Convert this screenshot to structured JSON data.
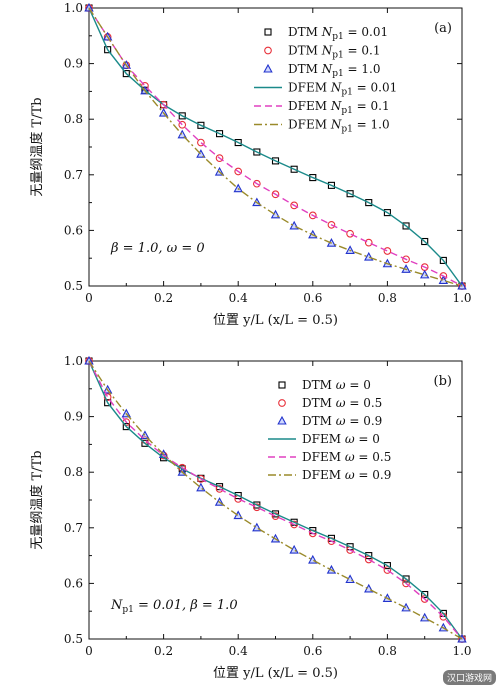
{
  "chart_data": [
    {
      "type": "line",
      "panel_label": "(a)",
      "xlabel": "位置 y/L (x/L = 0.5)",
      "ylabel": "无量纲温度 T/Tb",
      "xlim": [
        0,
        1.0
      ],
      "ylim": [
        0.5,
        1.0
      ],
      "xticks": [
        "0",
        "0.2",
        "0.4",
        "0.6",
        "0.8",
        "1.0"
      ],
      "yticks": [
        "0.5",
        "0.6",
        "0.7",
        "0.8",
        "0.9",
        "1.0"
      ],
      "annotation": "β = 1.0, ω = 0",
      "legend_position": "top-right",
      "series": [
        {
          "name": "DTM Np1 = 0.01",
          "kind": "marker",
          "marker": "square",
          "color": "#000000",
          "x": [
            0,
            0.05,
            0.1,
            0.15,
            0.2,
            0.25,
            0.3,
            0.35,
            0.4,
            0.45,
            0.5,
            0.55,
            0.6,
            0.65,
            0.7,
            0.75,
            0.8,
            0.85,
            0.9,
            0.95,
            1.0
          ],
          "y": [
            1.0,
            0.925,
            0.882,
            0.852,
            0.826,
            0.806,
            0.789,
            0.774,
            0.758,
            0.741,
            0.725,
            0.71,
            0.695,
            0.681,
            0.666,
            0.65,
            0.632,
            0.608,
            0.58,
            0.546,
            0.5
          ]
        },
        {
          "name": "DTM Np1 = 0.1",
          "kind": "marker",
          "marker": "circle",
          "color": "#e8303a",
          "x": [
            0,
            0.05,
            0.1,
            0.15,
            0.2,
            0.25,
            0.3,
            0.35,
            0.4,
            0.45,
            0.5,
            0.55,
            0.6,
            0.65,
            0.7,
            0.75,
            0.8,
            0.85,
            0.9,
            0.95,
            1.0
          ],
          "y": [
            1.0,
            0.948,
            0.897,
            0.86,
            0.826,
            0.79,
            0.758,
            0.73,
            0.706,
            0.684,
            0.665,
            0.645,
            0.627,
            0.61,
            0.594,
            0.578,
            0.563,
            0.548,
            0.534,
            0.518,
            0.5
          ]
        },
        {
          "name": "DTM Np1 = 1.0",
          "kind": "marker",
          "marker": "triangle",
          "color": "#2233cc",
          "x": [
            0,
            0.05,
            0.1,
            0.15,
            0.2,
            0.25,
            0.3,
            0.35,
            0.4,
            0.45,
            0.5,
            0.55,
            0.6,
            0.65,
            0.7,
            0.75,
            0.8,
            0.85,
            0.9,
            0.95,
            1.0
          ],
          "y": [
            1.0,
            0.948,
            0.897,
            0.851,
            0.811,
            0.772,
            0.737,
            0.705,
            0.675,
            0.65,
            0.628,
            0.608,
            0.592,
            0.577,
            0.564,
            0.552,
            0.54,
            0.53,
            0.52,
            0.51,
            0.5
          ]
        },
        {
          "name": "DFEM Np1 = 0.01",
          "kind": "line",
          "style": "solid",
          "color": "#1b8a8a",
          "x": [
            0,
            0.05,
            0.1,
            0.15,
            0.2,
            0.25,
            0.3,
            0.35,
            0.4,
            0.45,
            0.5,
            0.55,
            0.6,
            0.65,
            0.7,
            0.75,
            0.8,
            0.85,
            0.9,
            0.95,
            1.0
          ],
          "y": [
            1.0,
            0.925,
            0.882,
            0.852,
            0.826,
            0.806,
            0.789,
            0.774,
            0.758,
            0.741,
            0.725,
            0.71,
            0.695,
            0.681,
            0.666,
            0.65,
            0.632,
            0.608,
            0.58,
            0.546,
            0.5
          ]
        },
        {
          "name": "DFEM Np1 = 0.1",
          "kind": "line",
          "style": "dashed",
          "color": "#e040c0",
          "x": [
            0,
            0.05,
            0.1,
            0.15,
            0.2,
            0.25,
            0.3,
            0.35,
            0.4,
            0.45,
            0.5,
            0.55,
            0.6,
            0.65,
            0.7,
            0.75,
            0.8,
            0.85,
            0.9,
            0.95,
            1.0
          ],
          "y": [
            1.0,
            0.948,
            0.897,
            0.86,
            0.826,
            0.79,
            0.758,
            0.73,
            0.706,
            0.684,
            0.665,
            0.645,
            0.627,
            0.61,
            0.594,
            0.578,
            0.563,
            0.548,
            0.534,
            0.518,
            0.5
          ]
        },
        {
          "name": "DFEM Np1 = 1.0",
          "kind": "line",
          "style": "dashdot",
          "color": "#9a8a2a",
          "x": [
            0,
            0.05,
            0.1,
            0.15,
            0.2,
            0.25,
            0.3,
            0.35,
            0.4,
            0.45,
            0.5,
            0.55,
            0.6,
            0.65,
            0.7,
            0.75,
            0.8,
            0.85,
            0.9,
            0.95,
            1.0
          ],
          "y": [
            1.0,
            0.948,
            0.897,
            0.851,
            0.811,
            0.772,
            0.737,
            0.705,
            0.675,
            0.65,
            0.628,
            0.608,
            0.592,
            0.577,
            0.564,
            0.552,
            0.54,
            0.53,
            0.52,
            0.51,
            0.5
          ]
        }
      ]
    },
    {
      "type": "line",
      "panel_label": "(b)",
      "xlabel": "位置 y/L (x/L = 0.5)",
      "ylabel": "无量纲温度 T/Tb",
      "xlim": [
        0,
        1.0
      ],
      "ylim": [
        0.5,
        1.0
      ],
      "xticks": [
        "0",
        "0.2",
        "0.4",
        "0.6",
        "0.8",
        "1.0"
      ],
      "yticks": [
        "0.5",
        "0.6",
        "0.7",
        "0.8",
        "0.9",
        "1.0"
      ],
      "annotation": "Np1 = 0.01, β = 1.0",
      "legend_position": "top-right",
      "series": [
        {
          "name": "DTM ω = 0",
          "kind": "marker",
          "marker": "square",
          "color": "#000000",
          "x": [
            0,
            0.05,
            0.1,
            0.15,
            0.2,
            0.25,
            0.3,
            0.35,
            0.4,
            0.45,
            0.5,
            0.55,
            0.6,
            0.65,
            0.7,
            0.75,
            0.8,
            0.85,
            0.9,
            0.95,
            1.0
          ],
          "y": [
            1.0,
            0.925,
            0.882,
            0.852,
            0.826,
            0.806,
            0.789,
            0.774,
            0.758,
            0.741,
            0.725,
            0.71,
            0.695,
            0.681,
            0.666,
            0.65,
            0.632,
            0.608,
            0.58,
            0.546,
            0.5
          ]
        },
        {
          "name": "DTM ω = 0.5",
          "kind": "marker",
          "marker": "circle",
          "color": "#e8303a",
          "x": [
            0,
            0.05,
            0.1,
            0.15,
            0.2,
            0.25,
            0.3,
            0.35,
            0.4,
            0.45,
            0.5,
            0.55,
            0.6,
            0.65,
            0.7,
            0.75,
            0.8,
            0.85,
            0.9,
            0.95,
            1.0
          ],
          "y": [
            1.0,
            0.935,
            0.89,
            0.858,
            0.83,
            0.808,
            0.788,
            0.77,
            0.752,
            0.737,
            0.721,
            0.706,
            0.69,
            0.676,
            0.66,
            0.643,
            0.624,
            0.6,
            0.572,
            0.54,
            0.5
          ]
        },
        {
          "name": "DTM ω = 0.9",
          "kind": "marker",
          "marker": "triangle",
          "color": "#2233cc",
          "x": [
            0,
            0.05,
            0.1,
            0.15,
            0.2,
            0.25,
            0.3,
            0.35,
            0.4,
            0.45,
            0.5,
            0.55,
            0.6,
            0.65,
            0.7,
            0.75,
            0.8,
            0.85,
            0.9,
            0.95,
            1.0
          ],
          "y": [
            1.0,
            0.948,
            0.905,
            0.866,
            0.832,
            0.8,
            0.772,
            0.746,
            0.722,
            0.7,
            0.68,
            0.66,
            0.642,
            0.624,
            0.607,
            0.59,
            0.573,
            0.556,
            0.538,
            0.52,
            0.5
          ]
        },
        {
          "name": "DFEM ω = 0",
          "kind": "line",
          "style": "solid",
          "color": "#1b8a8a",
          "x": [
            0,
            0.05,
            0.1,
            0.15,
            0.2,
            0.25,
            0.3,
            0.35,
            0.4,
            0.45,
            0.5,
            0.55,
            0.6,
            0.65,
            0.7,
            0.75,
            0.8,
            0.85,
            0.9,
            0.95,
            1.0
          ],
          "y": [
            1.0,
            0.925,
            0.882,
            0.852,
            0.826,
            0.806,
            0.789,
            0.774,
            0.758,
            0.741,
            0.725,
            0.71,
            0.695,
            0.681,
            0.666,
            0.65,
            0.632,
            0.608,
            0.58,
            0.546,
            0.5
          ]
        },
        {
          "name": "DFEM ω = 0.5",
          "kind": "line",
          "style": "dashed",
          "color": "#e040c0",
          "x": [
            0,
            0.05,
            0.1,
            0.15,
            0.2,
            0.25,
            0.3,
            0.35,
            0.4,
            0.45,
            0.5,
            0.55,
            0.6,
            0.65,
            0.7,
            0.75,
            0.8,
            0.85,
            0.9,
            0.95,
            1.0
          ],
          "y": [
            1.0,
            0.935,
            0.89,
            0.858,
            0.83,
            0.808,
            0.788,
            0.77,
            0.752,
            0.737,
            0.721,
            0.706,
            0.69,
            0.676,
            0.66,
            0.643,
            0.624,
            0.6,
            0.572,
            0.54,
            0.5
          ]
        },
        {
          "name": "DFEM ω = 0.9",
          "kind": "line",
          "style": "dashdot",
          "color": "#9a8a2a",
          "x": [
            0,
            0.05,
            0.1,
            0.15,
            0.2,
            0.25,
            0.3,
            0.35,
            0.4,
            0.45,
            0.5,
            0.55,
            0.6,
            0.65,
            0.7,
            0.75,
            0.8,
            0.85,
            0.9,
            0.95,
            1.0
          ],
          "y": [
            1.0,
            0.948,
            0.905,
            0.866,
            0.832,
            0.8,
            0.772,
            0.746,
            0.722,
            0.7,
            0.68,
            0.66,
            0.642,
            0.624,
            0.607,
            0.59,
            0.573,
            0.556,
            0.538,
            0.52,
            0.5
          ]
        }
      ]
    }
  ],
  "watermark": "汉口游戏网"
}
